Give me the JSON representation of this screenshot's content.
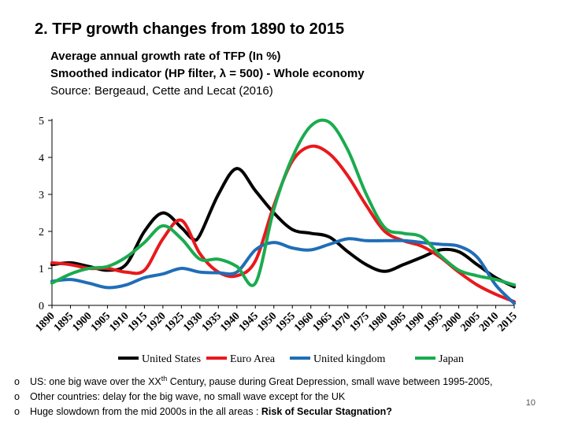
{
  "slide": {
    "title": "2.  TFP growth changes from 1890 to 2015",
    "subtitle_lines": [
      "Average annual growth rate of TFP (In %)",
      "Smoothed indicator (HP filter, λ = 500) - Whole economy",
      "Source: Bergeaud, Cette and Lecat (2016)"
    ],
    "bullets": [
      {
        "marker": "o",
        "text_before": "US: one big wave over the XX",
        "sup": "th",
        "text_after": " Century, pause during Great Depression, small wave between 1995-2005,"
      },
      {
        "marker": "o",
        "text": "Other countries: delay for the big wave, no small wave except for the UK"
      },
      {
        "marker": "o",
        "text_plain": "Huge slowdown from the mid 2000s in the all areas : ",
        "text_bold": "Risk of Secular Stagnation?"
      }
    ],
    "page_number": "10"
  },
  "chart_data": {
    "type": "line",
    "title": "",
    "xlabel": "",
    "ylabel": "",
    "xlim": [
      1890,
      2015
    ],
    "ylim": [
      0,
      5
    ],
    "yticks": [
      "0",
      "1",
      "2",
      "3",
      "4",
      "5"
    ],
    "xticks": [
      "1890",
      "1895",
      "1900",
      "1905",
      "1910",
      "1915",
      "1920",
      "1925",
      "1930",
      "1935",
      "1940",
      "1945",
      "1950",
      "1955",
      "1960",
      "1965",
      "1970",
      "1975",
      "1980",
      "1985",
      "1990",
      "1995",
      "2000",
      "2005",
      "2010",
      "2015"
    ],
    "legend_position": "bottom",
    "series": [
      {
        "name": "United States",
        "color": "#000000",
        "x": [
          1890,
          1895,
          1900,
          1905,
          1910,
          1915,
          1920,
          1925,
          1928,
          1930,
          1935,
          1940,
          1945,
          1950,
          1955,
          1960,
          1965,
          1970,
          1975,
          1980,
          1985,
          1990,
          1995,
          2000,
          2005,
          2010,
          2015
        ],
        "y": [
          1.1,
          1.15,
          1.05,
          0.95,
          1.1,
          2.0,
          2.5,
          2.1,
          1.8,
          1.9,
          3.0,
          3.7,
          3.1,
          2.5,
          2.05,
          1.95,
          1.85,
          1.45,
          1.1,
          0.92,
          1.1,
          1.3,
          1.5,
          1.45,
          1.1,
          0.75,
          0.5
        ]
      },
      {
        "name": "Euro Area",
        "color": "#e8191c",
        "x": [
          1890,
          1895,
          1900,
          1905,
          1910,
          1915,
          1920,
          1925,
          1930,
          1935,
          1940,
          1945,
          1950,
          1955,
          1960,
          1965,
          1970,
          1975,
          1980,
          1985,
          1990,
          1995,
          2000,
          2005,
          2010,
          2015
        ],
        "y": [
          1.15,
          1.1,
          1.0,
          1.0,
          0.9,
          0.95,
          1.8,
          2.3,
          1.4,
          0.9,
          0.8,
          1.2,
          2.7,
          3.9,
          4.3,
          4.1,
          3.5,
          2.7,
          2.0,
          1.75,
          1.6,
          1.3,
          0.9,
          0.55,
          0.3,
          0.1
        ]
      },
      {
        "name": "United kingdom",
        "color": "#1f6eb7",
        "x": [
          1890,
          1895,
          1900,
          1905,
          1910,
          1915,
          1920,
          1925,
          1930,
          1935,
          1940,
          1945,
          1950,
          1955,
          1960,
          1965,
          1970,
          1975,
          1980,
          1985,
          1990,
          1995,
          2000,
          2005,
          2010,
          2015
        ],
        "y": [
          0.65,
          0.7,
          0.6,
          0.48,
          0.55,
          0.75,
          0.85,
          1.0,
          0.9,
          0.88,
          0.9,
          1.5,
          1.7,
          1.55,
          1.5,
          1.65,
          1.8,
          1.75,
          1.75,
          1.75,
          1.7,
          1.65,
          1.6,
          1.3,
          0.55,
          0.05
        ]
      },
      {
        "name": "Japan",
        "color": "#1aab4f",
        "x": [
          1890,
          1895,
          1900,
          1905,
          1910,
          1915,
          1920,
          1925,
          1930,
          1935,
          1940,
          1945,
          1950,
          1955,
          1960,
          1965,
          1970,
          1975,
          1980,
          1985,
          1990,
          1995,
          2000,
          2005,
          2010,
          2015
        ],
        "y": [
          0.6,
          0.85,
          1.0,
          1.05,
          1.3,
          1.7,
          2.15,
          1.8,
          1.25,
          1.25,
          1.05,
          0.6,
          2.6,
          4.0,
          4.85,
          4.95,
          4.2,
          3.0,
          2.1,
          1.95,
          1.85,
          1.35,
          0.95,
          0.8,
          0.7,
          0.55
        ]
      }
    ]
  }
}
